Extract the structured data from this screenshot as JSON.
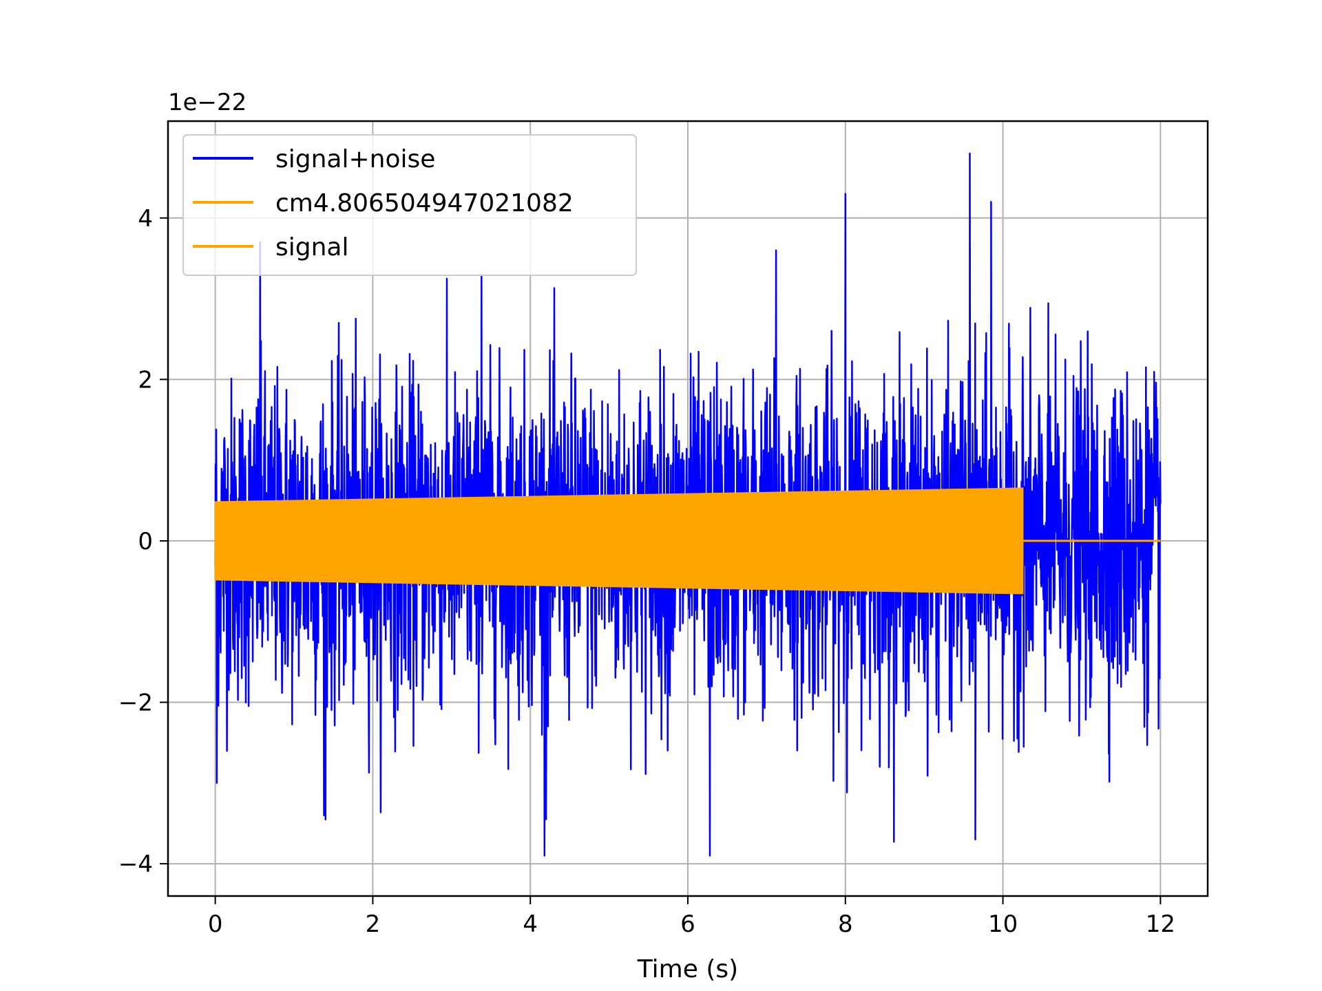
{
  "chart_data": {
    "type": "line",
    "title": "",
    "xlabel": "Time (s)",
    "ylabel": "",
    "offset_text": "1e−22",
    "xlim": [
      -0.6,
      12.6
    ],
    "ylim": [
      -4.4,
      5.2
    ],
    "x_ticks": [
      0,
      2,
      4,
      6,
      8,
      10,
      12
    ],
    "x_tick_labels": [
      "0",
      "2",
      "4",
      "6",
      "8",
      "10",
      "12"
    ],
    "y_ticks": [
      -4,
      -2,
      0,
      2,
      4
    ],
    "y_tick_labels": [
      "−4",
      "−2",
      "0",
      "2",
      "4"
    ],
    "grid": true,
    "legend_position": "top-left",
    "series": [
      {
        "name": "signal+noise",
        "color": "#0000ff",
        "x_range": [
          0,
          12
        ],
        "typical_envelope": 1.6,
        "max": 4.8,
        "min": -3.9,
        "peaks": [
          {
            "x": 0.57,
            "y": 3.7
          },
          {
            "x": 3.38,
            "y": 3.3
          },
          {
            "x": 4.2,
            "y": 3.4
          },
          {
            "x": 7.12,
            "y": 3.6
          },
          {
            "x": 8.0,
            "y": 4.3
          },
          {
            "x": 9.58,
            "y": 4.8
          },
          {
            "x": 9.85,
            "y": 4.2
          },
          {
            "x": 0.02,
            "y": -3.0
          },
          {
            "x": 1.38,
            "y": -3.4
          },
          {
            "x": 4.2,
            "y": -3.45
          },
          {
            "x": 6.28,
            "y": -3.9
          },
          {
            "x": 9.65,
            "y": -3.7
          }
        ]
      },
      {
        "name": "cm4.806504947021082",
        "color": "#ffa500",
        "x_range": [
          0,
          10.25
        ],
        "amplitude_start": 0.48,
        "amplitude_end": 0.65
      },
      {
        "name": "signal",
        "color": "#ffa500",
        "x_range": [
          0,
          12
        ],
        "amplitude_start": 0.48,
        "amplitude_end": 0.65,
        "signal_end": 10.25
      }
    ]
  }
}
